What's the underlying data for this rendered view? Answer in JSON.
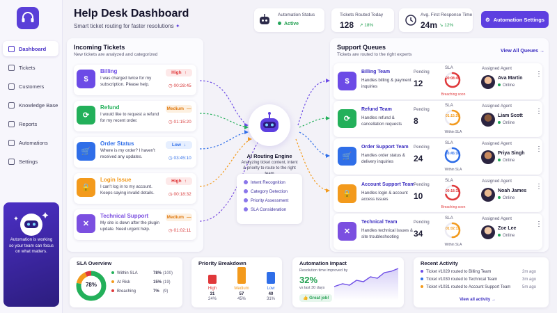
{
  "sidebar": {
    "items": [
      {
        "label": "Dashboard",
        "icon": "home-icon",
        "active": true
      },
      {
        "label": "Tickets",
        "icon": "ticket-icon"
      },
      {
        "label": "Customers",
        "icon": "users-icon"
      },
      {
        "label": "Knowledge Base",
        "icon": "book-icon"
      },
      {
        "label": "Reports",
        "icon": "chart-icon"
      },
      {
        "label": "Automations",
        "icon": "flow-icon"
      },
      {
        "label": "Settings",
        "icon": "gear-icon"
      }
    ],
    "promo_text": "Automation is working so your team can focus on what matters."
  },
  "header": {
    "title": "Help Desk Dashboard",
    "subtitle": "Smart ticket routing for faster resolutions",
    "automation_status": {
      "label": "Automation Status",
      "value": "Active"
    },
    "tickets_routed": {
      "label": "Tickets Routed Today",
      "value": "128",
      "change": "18%"
    },
    "first_response": {
      "label": "Avg. First Response Time",
      "value": "24m",
      "change": "12%"
    },
    "settings_button": "Automation Settings"
  },
  "incoming": {
    "title": "Incoming Tickets",
    "subtitle": "New tickets are analyzed and categorized",
    "tickets": [
      {
        "name": "Billing",
        "desc": "I was charged twice for my subscription. Please help.",
        "priority": "High",
        "arrow": "↑",
        "time": "00:28:45",
        "color": "#6c4be6",
        "pcolor": "#e0383a",
        "pbg": "#fde9e9",
        "tcolor": "#d83a3a"
      },
      {
        "name": "Refund",
        "desc": "I would like to request a refund for my recent order.",
        "priority": "Medium",
        "arrow": "—",
        "time": "01:15:20",
        "color": "#23b05a",
        "pcolor": "#e07b12",
        "pbg": "#fdf0e0",
        "tcolor": "#d83a3a"
      },
      {
        "name": "Order Status",
        "desc": "Where is my order? I haven't received any updates.",
        "priority": "Low",
        "arrow": "↓",
        "time": "03:45:10",
        "color": "#2f6ee8",
        "pcolor": "#2f6ee8",
        "pbg": "#e6efff",
        "tcolor": "#2f6ee8"
      },
      {
        "name": "Login Issue",
        "desc": "I can't log in to my account. Keeps saying invalid details.",
        "priority": "High",
        "arrow": "↑",
        "time": "00:18:32",
        "color": "#f39a1c",
        "pcolor": "#e0383a",
        "pbg": "#fde9e9",
        "tcolor": "#d83a3a"
      },
      {
        "name": "Technical Support",
        "desc": "My site is down after the plugin update. Need urgent help.",
        "priority": "Medium",
        "arrow": "—",
        "time": "01:02:11",
        "color": "#7b4fe0",
        "pcolor": "#e07b12",
        "pbg": "#fdf0e0",
        "tcolor": "#d83a3a"
      }
    ]
  },
  "engine": {
    "title": "AI Routing Engine",
    "desc": "Analyzing ticket content, intent & priority to route to the right team",
    "checks": [
      "Intent Recognition",
      "Category Detection",
      "Priority Assessment",
      "SLA Consideration"
    ]
  },
  "queues": {
    "title": "Support Queues",
    "subtitle": "Tickets are routed to the right experts",
    "view_all": "View All Queues →",
    "pending_label": "Pending",
    "sla_label": "SLA",
    "agent_label": "Assigned Agent",
    "online_label": "Online",
    "items": [
      {
        "name": "Billing Team",
        "desc": "Handles billing & payment inquiries",
        "pending": "12",
        "sla": "00:08:45",
        "sla_fraction": 0.78,
        "sla_status": "Breaching soon",
        "sla_color": "#e0383a",
        "agent": "Ava Martin",
        "color": "#6c4be6",
        "avatar": "#f2c09a"
      },
      {
        "name": "Refund Team",
        "desc": "Handles refund & cancellation requests",
        "pending": "8",
        "sla": "01:15:20",
        "sla_fraction": 0.55,
        "sla_status": "Within SLA",
        "sla_color": "#f39a1c",
        "agent": "Liam Scott",
        "color": "#23b05a",
        "avatar": "#8a5a3c"
      },
      {
        "name": "Order Support Team",
        "desc": "Handles order status & delivery inquiries",
        "pending": "24",
        "sla": "03:45:10",
        "sla_fraction": 0.85,
        "sla_status": "Within SLA",
        "sla_color": "#2f6ee8",
        "agent": "Priya Singh",
        "color": "#2f6ee8",
        "avatar": "#c98a5e"
      },
      {
        "name": "Account Support Team",
        "desc": "Handles login & account access issues",
        "pending": "10",
        "sla": "00:18:32",
        "sla_fraction": 0.7,
        "sla_status": "Breaching soon",
        "sla_color": "#e0383a",
        "agent": "Noah James",
        "color": "#f39a1c",
        "avatar": "#e8b98f"
      },
      {
        "name": "Technical Team",
        "desc": "Handles technical issues & site troubleshooting",
        "pending": "34",
        "sla": "01:02:11",
        "sla_fraction": 0.5,
        "sla_status": "Within SLA",
        "sla_color": "#f39a1c",
        "agent": "Zoe Lee",
        "color": "#7b4fe0",
        "avatar": "#f0c8a6"
      }
    ]
  },
  "sla_overview": {
    "title": "SLA Overview",
    "center": "78%",
    "rows": [
      {
        "label": "Within SLA",
        "pct": "78%",
        "count": "(100)",
        "color": "#23b05a",
        "value": 78
      },
      {
        "label": "At Risk",
        "pct": "15%",
        "count": "(19)",
        "color": "#f39a1c",
        "value": 15
      },
      {
        "label": "Breaching",
        "pct": "7%",
        "count": "(9)",
        "color": "#e0383a",
        "value": 7
      }
    ]
  },
  "priority": {
    "title": "Priority Breakdown",
    "bars": [
      {
        "label": "High",
        "count": "31",
        "pct": "24%",
        "value": 31,
        "color": "#e0383a"
      },
      {
        "label": "Medium",
        "count": "57",
        "pct": "45%",
        "value": 57,
        "color": "#f39a1c"
      },
      {
        "label": "Low",
        "count": "40",
        "pct": "31%",
        "value": 40,
        "color": "#2f6ee8"
      }
    ]
  },
  "impact": {
    "title": "Automation Impact",
    "desc": "Resolution time improved by",
    "value": "32%",
    "compare": "vs last 30 days",
    "badge": "Great job!"
  },
  "activity": {
    "title": "Recent Activity",
    "items": [
      {
        "text": "Ticket #1029 routed to Billing Team",
        "ago": "2m ago",
        "color": "#6c4be6"
      },
      {
        "text": "Ticket #1030 routed to Technical Team",
        "ago": "3m ago",
        "color": "#2f6ee8"
      },
      {
        "text": "Ticket #1031 routed to Account Support Team",
        "ago": "5m ago",
        "color": "#f39a1c"
      }
    ],
    "view_all": "View all activity →"
  }
}
